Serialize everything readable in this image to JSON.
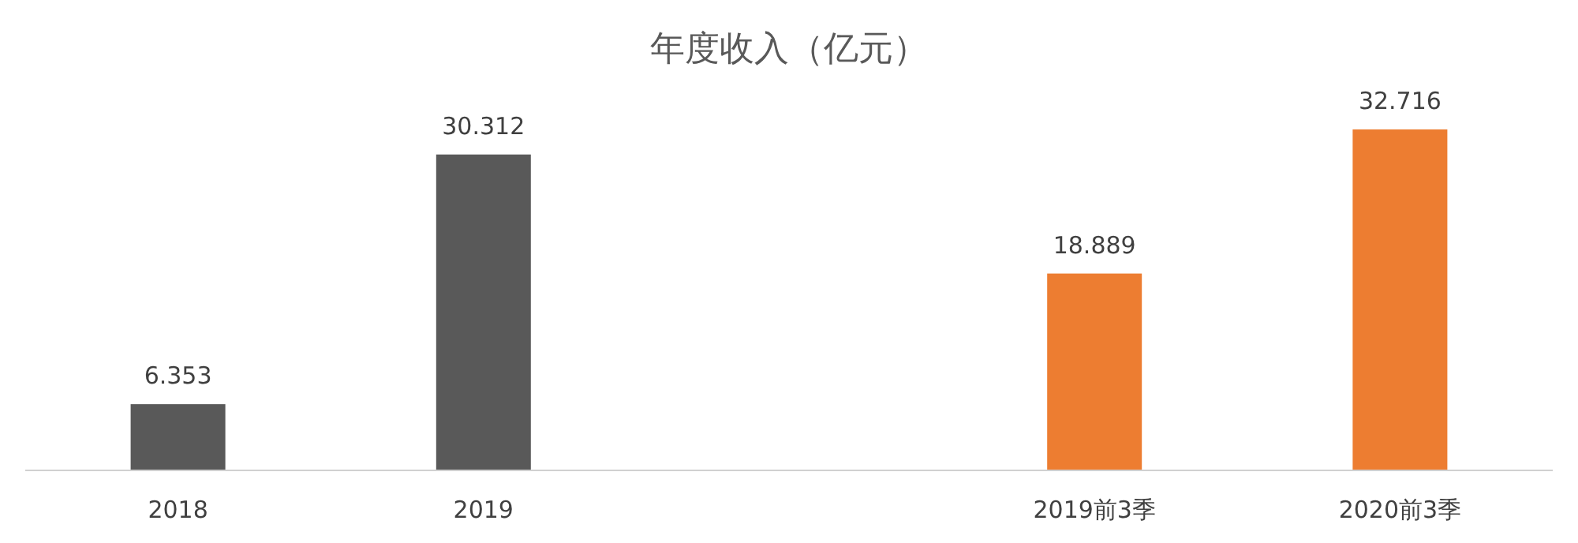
{
  "chart_data": {
    "type": "bar",
    "title": "年度收入（亿元）",
    "categories": [
      "2018",
      "2019",
      null,
      "2019前3季",
      "2020前3季"
    ],
    "values": [
      6.353,
      30.312,
      null,
      18.889,
      32.716
    ],
    "colors": [
      "#595959",
      "#595959",
      null,
      "#ed7d31",
      "#ed7d31"
    ],
    "data_labels": true
  }
}
